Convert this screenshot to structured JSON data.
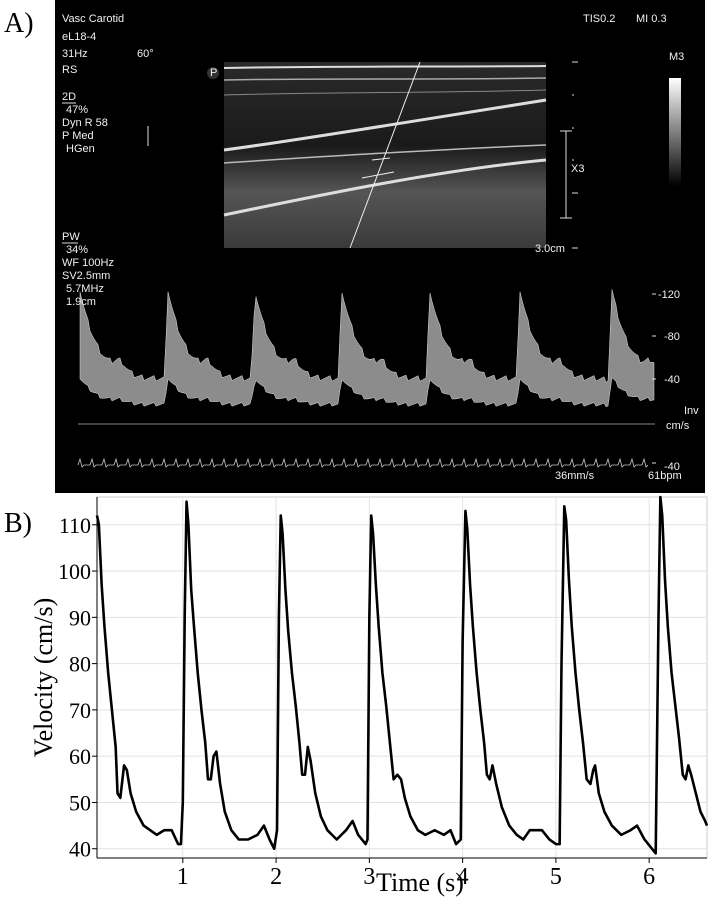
{
  "panel_labels": [
    "A)",
    "B)"
  ],
  "ultrasound": {
    "labels": [
      "Vasc Carotid",
      "eL18-4",
      "31Hz",
      "60°",
      "RS",
      "2D",
      "47%",
      "Dyn R 58",
      "P Med",
      "HGen",
      "PW",
      "34%",
      "WF 100Hz",
      "SV2.5mm",
      "5.7MHz",
      "1.9cm",
      "TIS0.2",
      "MI 0.3",
      "M3",
      "X3",
      "3.0cm",
      "-120",
      "-80",
      "-40",
      "Inv",
      "cm/s",
      "-40",
      "36mm/s",
      "61bpm",
      "P"
    ]
  },
  "chart_data": {
    "type": "line",
    "xlabel": "Time (s)",
    "ylabel": "Velocity (cm/s)",
    "x": [
      0.08,
      0.1,
      0.13,
      0.16,
      0.2,
      0.24,
      0.28,
      0.3,
      0.33,
      0.37,
      0.4,
      0.44,
      0.5,
      0.58,
      0.65,
      0.72,
      0.8,
      0.88,
      0.95,
      0.98,
      1.0,
      1.02,
      1.04,
      1.06,
      1.09,
      1.12,
      1.16,
      1.2,
      1.24,
      1.27,
      1.3,
      1.33,
      1.36,
      1.4,
      1.45,
      1.52,
      1.6,
      1.7,
      1.8,
      1.87,
      1.93,
      1.98,
      2.01,
      2.03,
      2.05,
      2.07,
      2.1,
      2.13,
      2.17,
      2.21,
      2.25,
      2.28,
      2.31,
      2.34,
      2.37,
      2.42,
      2.48,
      2.55,
      2.65,
      2.75,
      2.82,
      2.88,
      2.96,
      2.98,
      3.0,
      3.02,
      3.04,
      3.07,
      3.1,
      3.14,
      3.18,
      3.22,
      3.26,
      3.3,
      3.34,
      3.38,
      3.44,
      3.52,
      3.6,
      3.7,
      3.8,
      3.87,
      3.93,
      3.98,
      4.0,
      4.03,
      4.05,
      4.08,
      4.11,
      4.15,
      4.19,
      4.23,
      4.26,
      4.29,
      4.32,
      4.36,
      4.42,
      4.5,
      4.58,
      4.65,
      4.72,
      4.85,
      4.93,
      5.0,
      5.04,
      5.06,
      5.09,
      5.11,
      5.14,
      5.17,
      5.21,
      5.25,
      5.29,
      5.33,
      5.37,
      5.4,
      5.42,
      5.46,
      5.52,
      5.6,
      5.7,
      5.8,
      5.87,
      5.95,
      6.03,
      6.07,
      6.1,
      6.12,
      6.14,
      6.17,
      6.2,
      6.24,
      6.28,
      6.32,
      6.36,
      6.39,
      6.42,
      6.45,
      6.5,
      6.55,
      6.6,
      6.62
    ],
    "values": [
      112,
      110,
      97,
      88,
      78,
      70,
      62,
      52,
      51,
      58,
      57,
      52,
      48,
      45,
      44,
      43,
      44,
      44,
      41,
      41,
      50,
      90,
      115,
      110,
      96,
      88,
      78,
      70,
      63,
      55,
      55,
      60,
      61,
      54,
      48,
      44,
      42,
      42,
      43,
      45,
      42,
      40,
      44,
      90,
      112,
      108,
      96,
      87,
      78,
      71,
      63,
      56,
      56,
      62,
      59,
      52,
      47,
      44,
      42,
      44,
      46,
      43,
      41,
      42,
      90,
      112,
      108,
      97,
      88,
      78,
      71,
      63,
      55,
      56,
      55,
      51,
      47,
      44,
      43,
      44,
      43,
      44,
      41,
      42,
      85,
      113,
      109,
      97,
      88,
      78,
      70,
      63,
      56,
      55,
      58,
      54,
      49,
      45,
      43,
      42,
      44,
      44,
      42,
      41,
      41,
      80,
      114,
      111,
      98,
      88,
      78,
      70,
      63,
      55,
      54,
      57,
      58,
      52,
      48,
      45,
      43,
      44,
      45,
      42,
      40,
      39,
      90,
      116,
      112,
      98,
      88,
      78,
      71,
      64,
      56,
      55,
      58,
      56,
      52,
      48,
      46,
      45
    ],
    "color": "#000000",
    "xlim": [
      0.08,
      6.62
    ],
    "ylim": [
      38,
      116
    ],
    "xticks": [
      1,
      2,
      3,
      4,
      5,
      6
    ],
    "yticks": [
      40,
      50,
      60,
      70,
      80,
      90,
      100,
      110
    ],
    "grid": true
  }
}
